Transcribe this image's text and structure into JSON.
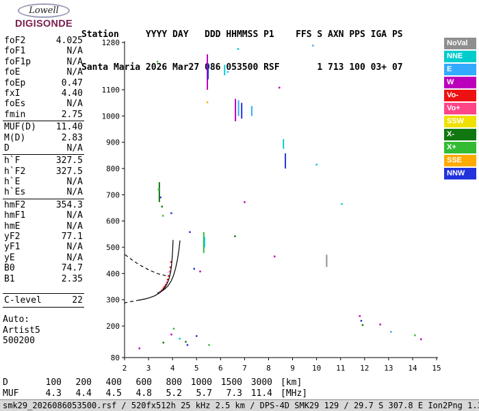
{
  "logo": {
    "brand_top": "Lowell",
    "brand_bottom": "DIGISONDE"
  },
  "header": {
    "line1": "Station     YYYY DAY   DDD HHMMSS P1    FFS S AXN PPS IGA PS",
    "line2": "Santa Maria 2026 Mar27 086 053500 RSF       1 713 100 03+ 07"
  },
  "params": {
    "groups": [
      {
        "rows": [
          [
            "foF2",
            "4.025"
          ],
          [
            "foF1",
            "N/A"
          ],
          [
            "foF1p",
            "N/A"
          ],
          [
            "foE",
            "N/A"
          ],
          [
            "foEp",
            "0.47"
          ],
          [
            "fxI",
            "4.40"
          ],
          [
            "foEs",
            "N/A"
          ],
          [
            "fmin",
            "2.75"
          ]
        ]
      },
      {
        "rows": [
          [
            "MUF(D)",
            "11.40"
          ],
          [
            "M(D)",
            "2.83"
          ],
          [
            "D",
            "N/A"
          ]
        ]
      },
      {
        "rows": [
          [
            "h`F",
            "327.5"
          ],
          [
            "h`F2",
            "327.5"
          ],
          [
            "h`E",
            "N/A"
          ],
          [
            "h`Es",
            "N/A"
          ]
        ]
      },
      {
        "rows": [
          [
            "hmF2",
            "354.3"
          ],
          [
            "hmF1",
            "N/A"
          ],
          [
            "hmE",
            "N/A"
          ],
          [
            "yF2",
            "77.1"
          ],
          [
            "yF1",
            "N/A"
          ],
          [
            "yE",
            "N/A"
          ],
          [
            "B0",
            "74.7"
          ],
          [
            "B1",
            "2.35"
          ]
        ]
      },
      {
        "rows": [
          [
            "C-level",
            "22"
          ]
        ]
      }
    ],
    "auto_label": "Auto:",
    "auto_lines": [
      "Artist5",
      "500200"
    ]
  },
  "legend": {
    "items": [
      {
        "label": "NoVal",
        "color": "#8f8f8f"
      },
      {
        "label": "NNE",
        "color": "#00cccc"
      },
      {
        "label": "E",
        "color": "#33aaff"
      },
      {
        "label": "W",
        "color": "#bb00bb"
      },
      {
        "label": "Vo-",
        "color": "#ee1111"
      },
      {
        "label": "Vo+",
        "color": "#ff4488"
      },
      {
        "label": "SSW",
        "color": "#f0e000"
      },
      {
        "label": "X-",
        "color": "#117711"
      },
      {
        "label": "X+",
        "color": "#33bb33"
      },
      {
        "label": "SSE",
        "color": "#ffaa00"
      },
      {
        "label": "NNW",
        "color": "#2233dd"
      }
    ]
  },
  "chart_data": {
    "type": "scatter",
    "title": "",
    "xlabel": "",
    "ylabel": "",
    "xlim": [
      2,
      15
    ],
    "ylim": [
      80,
      1280
    ],
    "x_ticks": [
      2,
      3,
      4,
      5,
      6,
      7,
      8,
      9,
      10,
      11,
      12,
      13,
      14,
      15
    ],
    "y_ticks": [
      80,
      200,
      300,
      400,
      500,
      600,
      700,
      800,
      900,
      1000,
      1100,
      1280
    ],
    "points": [
      [
        3.4,
        326,
        "X-"
      ],
      [
        3.48,
        330,
        "W"
      ],
      [
        3.55,
        336,
        "Vo-"
      ],
      [
        3.62,
        344,
        "Vo-"
      ],
      [
        3.67,
        350,
        "Vo-"
      ],
      [
        3.72,
        357,
        "Vo-"
      ],
      [
        3.76,
        366,
        "Vo+"
      ],
      [
        3.8,
        377,
        "Vo-"
      ],
      [
        3.84,
        391,
        "Vo-"
      ],
      [
        3.88,
        407,
        "Vo+"
      ],
      [
        3.91,
        424,
        "Vo-"
      ],
      [
        3.94,
        444,
        "Vo-"
      ],
      [
        3.42,
        720,
        "X+"
      ],
      [
        3.5,
        690,
        "NNW"
      ],
      [
        3.56,
        655,
        "X-"
      ],
      [
        3.6,
        620,
        "X+"
      ],
      [
        3.95,
        630,
        "NNW"
      ],
      [
        3.37,
        1207,
        "X+"
      ],
      [
        6.73,
        1255,
        "NNE"
      ],
      [
        9.85,
        1268,
        "E"
      ],
      [
        5.45,
        1052,
        "SSE"
      ],
      [
        8.45,
        1108,
        "W"
      ],
      [
        6.3,
        1168,
        "E"
      ],
      [
        7.0,
        672,
        "W"
      ],
      [
        6.6,
        542,
        "X-"
      ],
      [
        11.05,
        665,
        "NNE"
      ],
      [
        5.15,
        408,
        "W"
      ],
      [
        4.9,
        418,
        "NNW"
      ],
      [
        4.72,
        558,
        "NNW"
      ],
      [
        8.25,
        465,
        "W"
      ],
      [
        10.0,
        815,
        "NNE"
      ],
      [
        2.62,
        115,
        "W"
      ],
      [
        3.62,
        137,
        "X-"
      ],
      [
        3.95,
        168,
        "W"
      ],
      [
        4.05,
        190,
        "X+"
      ],
      [
        4.3,
        152,
        "NNE"
      ],
      [
        4.55,
        140,
        "X-"
      ],
      [
        4.62,
        128,
        "NNW"
      ],
      [
        5.0,
        162,
        "NNW"
      ],
      [
        5.52,
        128,
        "X+"
      ],
      [
        11.8,
        238,
        "W"
      ],
      [
        11.86,
        220,
        "NNW"
      ],
      [
        11.92,
        204,
        "X-"
      ],
      [
        12.65,
        206,
        "W"
      ],
      [
        13.1,
        178,
        "E"
      ],
      [
        14.1,
        165,
        "X+"
      ],
      [
        14.35,
        150,
        "W"
      ]
    ],
    "streaks": [
      [
        5.45,
        1100,
        1235,
        "W"
      ],
      [
        5.48,
        1140,
        1200,
        "NNW"
      ],
      [
        6.17,
        1155,
        1195,
        "NNE"
      ],
      [
        6.62,
        980,
        1065,
        "W"
      ],
      [
        6.75,
        1000,
        1060,
        "E"
      ],
      [
        6.88,
        990,
        1050,
        "NNW"
      ],
      [
        7.3,
        1000,
        1038,
        "E"
      ],
      [
        8.62,
        875,
        912,
        "NNE"
      ],
      [
        8.7,
        800,
        858,
        "NNW"
      ],
      [
        5.3,
        478,
        558,
        "X+"
      ],
      [
        5.33,
        500,
        540,
        "NNE"
      ],
      [
        3.45,
        672,
        748,
        "X-"
      ],
      [
        10.42,
        425,
        472,
        "NoVal"
      ]
    ],
    "traces": {
      "o_trace": [
        [
          2.62,
          299
        ],
        [
          2.85,
          303
        ],
        [
          3.05,
          308
        ],
        [
          3.25,
          315
        ],
        [
          3.42,
          324
        ],
        [
          3.56,
          334
        ],
        [
          3.68,
          347
        ],
        [
          3.78,
          362
        ],
        [
          3.86,
          382
        ],
        [
          3.92,
          406
        ],
        [
          3.96,
          434
        ],
        [
          3.99,
          466
        ],
        [
          4.01,
          500
        ],
        [
          4.02,
          528
        ]
      ],
      "x_trace": [
        [
          3.52,
          331
        ],
        [
          3.68,
          341
        ],
        [
          3.82,
          354
        ],
        [
          3.94,
          371
        ],
        [
          4.04,
          393
        ],
        [
          4.13,
          421
        ],
        [
          4.21,
          456
        ],
        [
          4.27,
          492
        ],
        [
          4.31,
          526
        ]
      ],
      "muf_dashed": [
        [
          2.02,
          472
        ],
        [
          2.35,
          449
        ],
        [
          2.7,
          429
        ],
        [
          3.05,
          412
        ],
        [
          3.4,
          399
        ],
        [
          3.72,
          392
        ]
      ],
      "low_dashed": [
        [
          1.98,
          288
        ],
        [
          2.2,
          292
        ],
        [
          2.45,
          296
        ],
        [
          2.7,
          301
        ]
      ]
    }
  },
  "bottom_table": {
    "d_label": "D",
    "d_values": [
      "100",
      "200",
      "400",
      "600",
      "800",
      "1000",
      "1500",
      "3000"
    ],
    "d_unit": "[km]",
    "muf_label": "MUF",
    "muf_values": [
      "4.3",
      "4.4",
      "4.5",
      "4.8",
      "5.2",
      "5.7",
      "7.3",
      "11.4"
    ],
    "muf_unit": "[MHz]"
  },
  "status_bar": "smk29_2026086053500.rsf / 520fx512h 25 kHz 2.5 km / DPS-4D SMK29 129 / 29.7 S 307.8 E Ion2Png 1.3.20"
}
